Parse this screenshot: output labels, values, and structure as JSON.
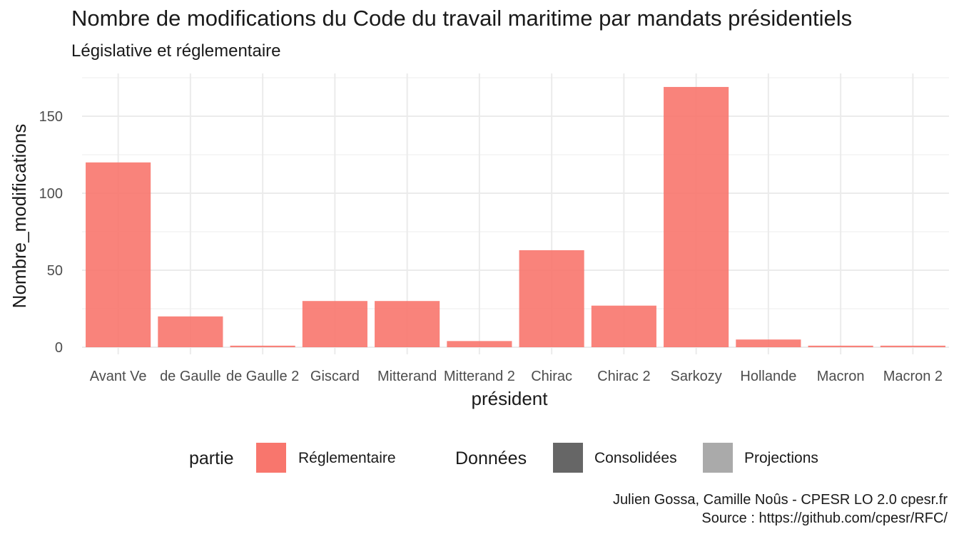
{
  "chart_data": {
    "type": "bar",
    "title": "Nombre de modifications du Code du travail maritime par mandats présidentiels",
    "subtitle": "Législative et réglementaire",
    "xlabel": "président",
    "ylabel": "Nombre_modifications",
    "categories": [
      "Avant Ve",
      "de Gaulle",
      "de Gaulle 2",
      "Giscard",
      "Mitterand",
      "Mitterand 2",
      "Chirac",
      "Chirac 2",
      "Sarkozy",
      "Hollande",
      "Macron",
      "Macron 2"
    ],
    "series": [
      {
        "name": "Réglementaire",
        "values": [
          120,
          20,
          1,
          30,
          30,
          4,
          63,
          27,
          169,
          5,
          1,
          1
        ],
        "color": "#f8766d"
      }
    ],
    "ylim": [
      0,
      175
    ],
    "yticks": [
      0,
      50,
      100,
      150
    ],
    "grid": true,
    "legend_position": "bottom"
  },
  "legend": {
    "partie_title": "partie",
    "partie_items": [
      {
        "label": "Réglementaire",
        "color": "#f8766d"
      }
    ],
    "donnees_title": "Données",
    "donnees_items": [
      {
        "label": "Consolidées",
        "color": "#666666"
      },
      {
        "label": "Projections",
        "color": "#aaaaaa"
      }
    ]
  },
  "caption": {
    "line1": "Julien Gossa, Camille Noûs - CPESR LO 2.0 cpesr.fr",
    "line2": "Source : https://github.com/cpesr/RFC/"
  }
}
